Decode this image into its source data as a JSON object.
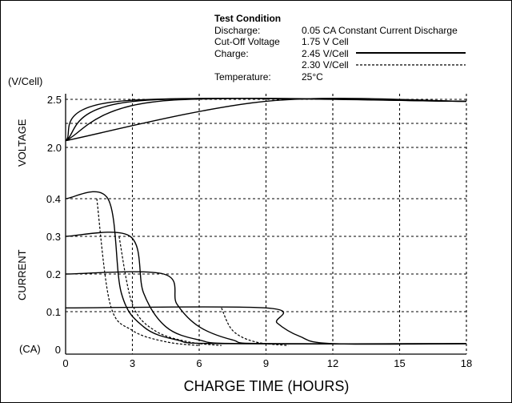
{
  "chart_data": {
    "type": "line",
    "title": "",
    "xlabel": "CHARGE TIME (HOURS)",
    "xlim": [
      0,
      18
    ],
    "x_ticks": [
      "0",
      "3",
      "6",
      "9",
      "12",
      "15",
      "18"
    ],
    "voltage_panel": {
      "ylabel": "VOLTAGE",
      "unit": "(V/Cell)",
      "ylim": [
        2.0,
        2.5
      ],
      "y_ticks": [
        "2.5",
        "2.0"
      ],
      "series": [
        {
          "name": "2.45 V/Cell",
          "style": "solid",
          "points": [
            [
              0,
              2.07
            ],
            [
              2.4,
              2.48
            ],
            [
              18,
              2.48
            ]
          ]
        },
        {
          "name": "2.45 V/Cell",
          "style": "solid",
          "points": [
            [
              0,
              2.07
            ],
            [
              3.1,
              2.48
            ],
            [
              18,
              2.48
            ]
          ]
        },
        {
          "name": "2.45 V/Cell",
          "style": "solid",
          "points": [
            [
              0,
              2.07
            ],
            [
              4.2,
              2.48
            ],
            [
              18,
              2.48
            ]
          ]
        },
        {
          "name": "2.45 V/Cell",
          "style": "solid",
          "points": [
            [
              0,
              2.07
            ],
            [
              9,
              2.48
            ],
            [
              18,
              2.48
            ]
          ]
        }
      ]
    },
    "current_panel": {
      "ylabel": "CURRENT",
      "unit": "(CA)",
      "ylim": [
        0,
        0.4
      ],
      "y_ticks": [
        "0.4",
        "0.3",
        "0.2",
        "0.1",
        "0"
      ],
      "series": [
        {
          "name": "2.45 V/Cell",
          "style": "solid",
          "points": [
            [
              0,
              0.4
            ],
            [
              1.9,
              0.4
            ],
            [
              2.5,
              0.15
            ],
            [
              3.5,
              0.06
            ],
            [
              5,
              0.025
            ],
            [
              7,
              0.015
            ],
            [
              18,
              0.015
            ]
          ]
        },
        {
          "name": "2.45 V/Cell",
          "style": "solid",
          "points": [
            [
              0,
              0.3
            ],
            [
              2.9,
              0.3
            ],
            [
              3.5,
              0.15
            ],
            [
              4.5,
              0.06
            ],
            [
              6,
              0.025
            ],
            [
              8,
              0.015
            ],
            [
              18,
              0.015
            ]
          ]
        },
        {
          "name": "2.45 V/Cell",
          "style": "solid",
          "points": [
            [
              0,
              0.2
            ],
            [
              4.4,
              0.2
            ],
            [
              5,
              0.12
            ],
            [
              6,
              0.06
            ],
            [
              7.5,
              0.025
            ],
            [
              9,
              0.015
            ],
            [
              18,
              0.015
            ]
          ]
        },
        {
          "name": "2.45 V/Cell",
          "style": "solid",
          "points": [
            [
              0,
              0.11
            ],
            [
              9,
              0.11
            ],
            [
              9.5,
              0.07
            ],
            [
              10.5,
              0.035
            ],
            [
              12,
              0.015
            ],
            [
              18,
              0.015
            ]
          ]
        },
        {
          "name": "2.30 V/Cell",
          "style": "dashed",
          "points": [
            [
              1.4,
              0.4
            ],
            [
              2,
              0.12
            ],
            [
              3,
              0.05
            ],
            [
              4.5,
              0.02
            ],
            [
              6,
              0.01
            ]
          ]
        },
        {
          "name": "2.30 V/Cell",
          "style": "dashed",
          "points": [
            [
              2.4,
              0.3
            ],
            [
              3,
              0.12
            ],
            [
              4,
              0.05
            ],
            [
              5.5,
              0.02
            ],
            [
              7,
              0.01
            ]
          ]
        },
        {
          "name": "2.30 V/Cell",
          "style": "dashed",
          "points": [
            [
              7,
              0.11
            ],
            [
              7.5,
              0.05
            ],
            [
              8.5,
              0.02
            ],
            [
              10,
              0.01
            ]
          ]
        }
      ]
    }
  },
  "legend": {
    "heading": "Test Condition",
    "rows": [
      {
        "label": "Discharge:",
        "value": "0.05 CA Constant Current Discharge"
      },
      {
        "label": "Cut-Off Voltage",
        "value": "1.75 V Cell"
      },
      {
        "label": "Charge:",
        "value": "2.45 V/Cell"
      },
      {
        "label": "",
        "value": "2.30 V/Cell"
      },
      {
        "label": "Temperature:",
        "value": "25°C"
      }
    ]
  }
}
